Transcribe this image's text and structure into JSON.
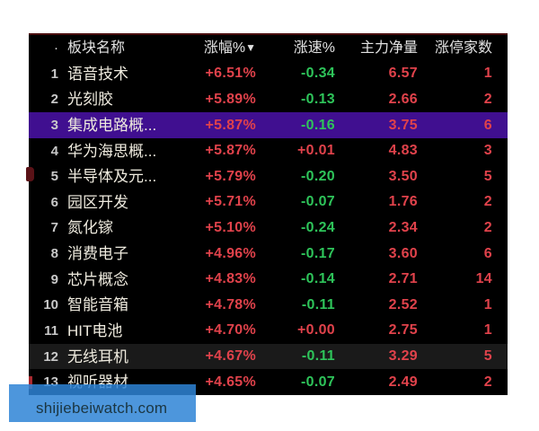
{
  "colors": {
    "up": "#e0424b",
    "down": "#2ec45a",
    "highlight_purple": "#400f90",
    "highlight_dim": "#1a1a1a",
    "table_bg": "#000000",
    "table_top_border": "#4a0f10",
    "header_text": "#e2e2e2",
    "name_text": "#eeeade",
    "index_text": "#c9c9c9",
    "banner_blue": "rgba(46,132,214,0.85)",
    "banner_text": "#1b3642"
  },
  "header": {
    "dot": "·",
    "name": "板块名称",
    "gain": "涨幅%",
    "sort_arrow": "▼",
    "speed": "涨速%",
    "netvol": "主力净量",
    "limitup": "涨停家数"
  },
  "rows": [
    {
      "num": "1",
      "name": "语音技术",
      "gain": "+6.51%",
      "speed": "-0.34",
      "netvol": "6.57",
      "limitup": "1",
      "highlight": ""
    },
    {
      "num": "2",
      "name": "光刻胶",
      "gain": "+5.89%",
      "speed": "-0.13",
      "netvol": "2.66",
      "limitup": "2",
      "highlight": ""
    },
    {
      "num": "3",
      "name": "集成电路概...",
      "gain": "+5.87%",
      "speed": "-0.16",
      "netvol": "3.75",
      "limitup": "6",
      "highlight": "purple"
    },
    {
      "num": "4",
      "name": "华为海思概...",
      "gain": "+5.87%",
      "speed": "+0.01",
      "netvol": "4.83",
      "limitup": "3",
      "highlight": ""
    },
    {
      "num": "5",
      "name": "半导体及元...",
      "gain": "+5.79%",
      "speed": "-0.20",
      "netvol": "3.50",
      "limitup": "5",
      "highlight": ""
    },
    {
      "num": "6",
      "name": "园区开发",
      "gain": "+5.71%",
      "speed": "-0.07",
      "netvol": "1.76",
      "limitup": "2",
      "highlight": ""
    },
    {
      "num": "7",
      "name": "氮化镓",
      "gain": "+5.10%",
      "speed": "-0.24",
      "netvol": "2.34",
      "limitup": "2",
      "highlight": ""
    },
    {
      "num": "8",
      "name": "消费电子",
      "gain": "+4.96%",
      "speed": "-0.17",
      "netvol": "3.60",
      "limitup": "6",
      "highlight": ""
    },
    {
      "num": "9",
      "name": "芯片概念",
      "gain": "+4.83%",
      "speed": "-0.14",
      "netvol": "2.71",
      "limitup": "14",
      "highlight": ""
    },
    {
      "num": "10",
      "name": "智能音箱",
      "gain": "+4.78%",
      "speed": "-0.11",
      "netvol": "2.52",
      "limitup": "1",
      "highlight": ""
    },
    {
      "num": "11",
      "name": "HIT电池",
      "gain": "+4.70%",
      "speed": "+0.00",
      "netvol": "2.75",
      "limitup": "1",
      "highlight": ""
    },
    {
      "num": "12",
      "name": "无线耳机",
      "gain": "+4.67%",
      "speed": "-0.11",
      "netvol": "3.29",
      "limitup": "5",
      "highlight": "dim"
    },
    {
      "num": "13",
      "name": "视听器材",
      "gain": "+4.65%",
      "speed": "-0.07",
      "netvol": "2.49",
      "limitup": "2",
      "highlight": ""
    }
  ],
  "watermark": {
    "text": "shijiebeiwatch.com"
  }
}
